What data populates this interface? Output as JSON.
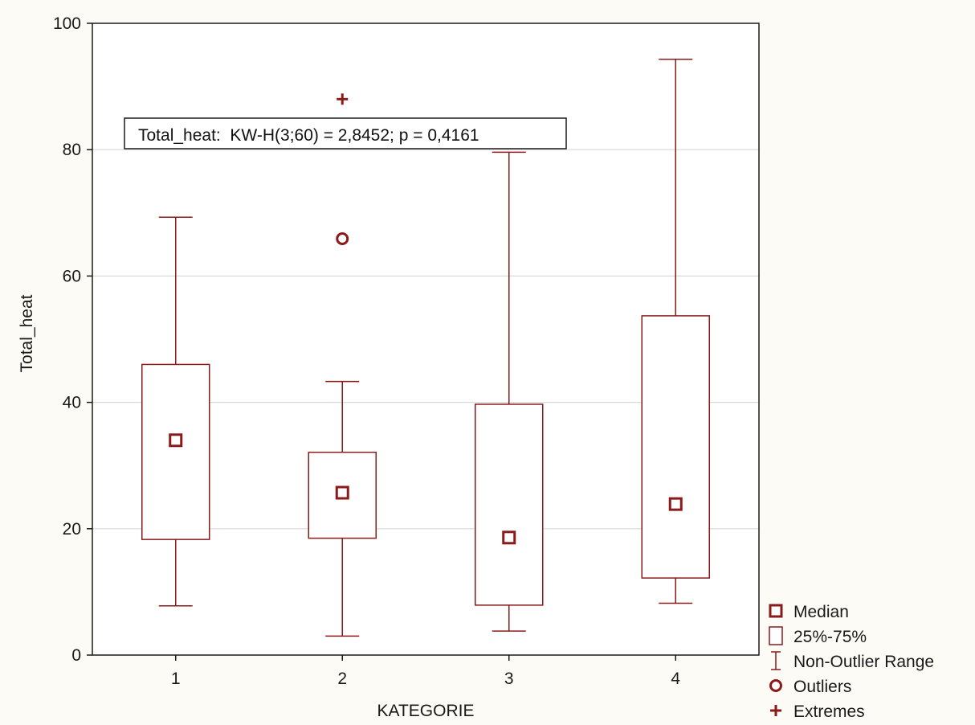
{
  "chart_data": {
    "type": "box",
    "title": "",
    "xlabel": "KATEGORIE",
    "ylabel": "Total_heat",
    "ylim": [
      0,
      100
    ],
    "yticks": [
      0,
      20,
      40,
      60,
      80,
      100
    ],
    "categories": [
      "1",
      "2",
      "3",
      "4"
    ],
    "grid": true,
    "legend_position": "bottom-right outside plot",
    "annotation": "Total_heat:  KW-H(3;60) = 2,8452; p = 0,4161",
    "boxes": [
      {
        "category": "1",
        "min": 7.8,
        "q1": 18.3,
        "median": 34.0,
        "q3": 46.0,
        "max": 69.3,
        "outliers": [],
        "extremes": []
      },
      {
        "category": "2",
        "min": 3.0,
        "q1": 18.5,
        "median": 25.7,
        "q3": 32.1,
        "max": 43.3,
        "outliers": [
          65.9
        ],
        "extremes": [
          88.0
        ]
      },
      {
        "category": "3",
        "min": 3.8,
        "q1": 7.9,
        "median": 18.6,
        "q3": 39.7,
        "max": 79.6,
        "outliers": [],
        "extremes": []
      },
      {
        "category": "4",
        "min": 8.2,
        "q1": 12.2,
        "median": 23.9,
        "q3": 53.7,
        "max": 94.3,
        "outliers": [],
        "extremes": []
      }
    ],
    "legend": [
      {
        "symbol": "median",
        "label": "Median"
      },
      {
        "symbol": "box",
        "label": "25%-75%"
      },
      {
        "symbol": "whisker",
        "label": "Non-Outlier Range"
      },
      {
        "symbol": "outlier",
        "label": "Outliers"
      },
      {
        "symbol": "extreme",
        "label": "Extremes"
      }
    ],
    "colors": {
      "series": "#8b1a1a",
      "grid": "#d9d9d9",
      "axis": "#1a1a1a",
      "page": "#fdfbf6"
    }
  }
}
